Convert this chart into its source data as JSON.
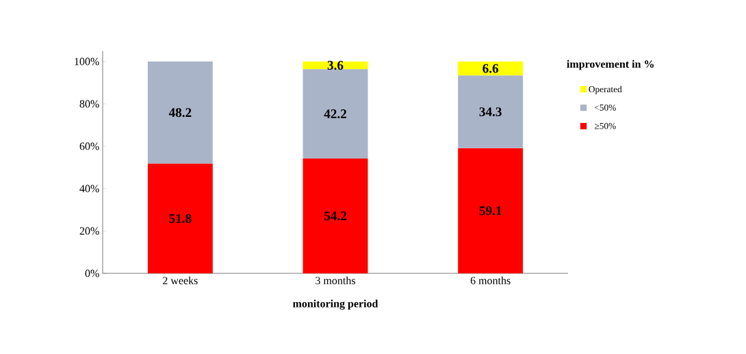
{
  "chart_data": {
    "type": "bar",
    "stacked": true,
    "xlabel": "monitoring period",
    "legend_title": "improvement in %",
    "categories": [
      "2 weeks",
      "3 months",
      "6 months"
    ],
    "series": [
      {
        "name": "≥50%",
        "color": "#ff0000",
        "values": [
          51.8,
          54.2,
          59.1
        ]
      },
      {
        "name": "<50%",
        "color": "#aab4c8",
        "values": [
          48.2,
          42.2,
          34.3
        ]
      },
      {
        "name": "Operated",
        "color": "#ffff00",
        "values": [
          null,
          3.6,
          6.6
        ]
      }
    ],
    "ylim": [
      0,
      105
    ],
    "yticks": [
      {
        "value": 0,
        "label": "0%"
      },
      {
        "value": 20,
        "label": "20%"
      },
      {
        "value": 40,
        "label": "40%"
      },
      {
        "value": 60,
        "label": "60%"
      },
      {
        "value": 80,
        "label": "80%"
      },
      {
        "value": 100,
        "label": "100%"
      }
    ],
    "data_labels": true,
    "legend": "top right",
    "grid": false
  }
}
